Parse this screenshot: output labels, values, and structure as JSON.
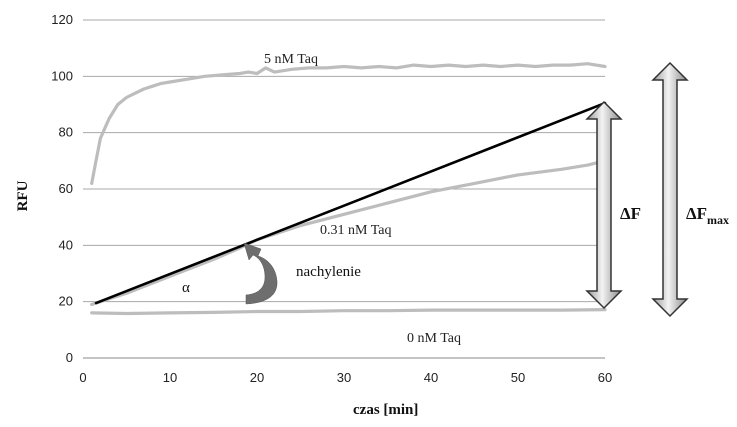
{
  "chart_data": {
    "type": "line",
    "title": "",
    "xlabel": "czas [min]",
    "ylabel": "RFU",
    "xlim": [
      0,
      60
    ],
    "ylim": [
      0,
      120
    ],
    "xticks": [
      0,
      10,
      20,
      30,
      40,
      50,
      60
    ],
    "yticks": [
      0,
      20,
      40,
      60,
      80,
      100,
      120
    ],
    "grid": "horizontal",
    "series": [
      {
        "name": "5 nM Taq",
        "color": "#bdbdbd",
        "x": [
          1,
          1.5,
          2,
          3,
          4,
          5,
          6,
          7,
          8,
          9,
          10,
          12,
          14,
          16,
          18,
          19,
          20,
          21,
          22,
          24,
          26,
          28,
          30,
          32,
          34,
          36,
          38,
          40,
          42,
          44,
          46,
          48,
          50,
          52,
          54,
          56,
          58,
          60
        ],
        "y": [
          62,
          70,
          78,
          85,
          90,
          92.5,
          94,
          95.5,
          96.5,
          97.5,
          98,
          99,
          100,
          100.5,
          101,
          101.5,
          101,
          103,
          101.5,
          102.5,
          103,
          103,
          103.5,
          103,
          103.5,
          103,
          104,
          103.5,
          104,
          103.5,
          104,
          103.5,
          104,
          103.5,
          104,
          104,
          104.5,
          103.5
        ]
      },
      {
        "name": "0.31 nM Taq",
        "color": "#bdbdbd",
        "x": [
          1,
          5,
          10,
          15,
          18,
          20,
          22,
          25,
          30,
          35,
          40,
          45,
          50,
          55,
          58,
          60
        ],
        "y": [
          19,
          23,
          29,
          35,
          39,
          42,
          44,
          47,
          51,
          55,
          59,
          62,
          65,
          67,
          68.5,
          70
        ]
      },
      {
        "name": "0 nM Taq",
        "color": "#bdbdbd",
        "x": [
          1,
          5,
          10,
          15,
          20,
          25,
          30,
          35,
          40,
          45,
          50,
          55,
          60
        ],
        "y": [
          16,
          15.8,
          16,
          16.2,
          16.5,
          16.5,
          16.8,
          16.8,
          17,
          17,
          17,
          17,
          17.2
        ]
      }
    ],
    "slope_line": {
      "color": "#000000",
      "x": [
        1.5,
        60
      ],
      "y": [
        19.5,
        90.5
      ]
    },
    "annotations": {
      "alpha": "α",
      "slope_label": "nachylenie",
      "delta_f": "ΔF",
      "delta_fmax_main": "ΔF",
      "delta_fmax_sub": "max"
    }
  }
}
